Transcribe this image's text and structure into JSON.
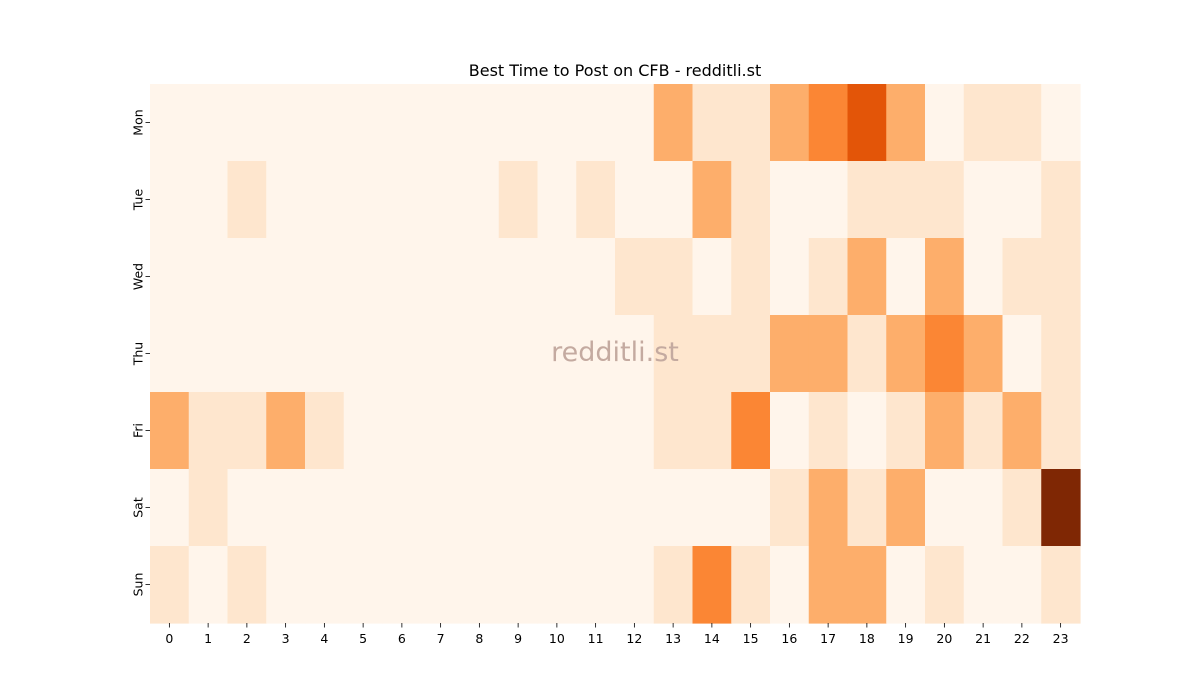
{
  "chart_data": {
    "type": "heatmap",
    "title": "Best Time to Post on CFB - redditli.st",
    "watermark": "redditli.st",
    "xlabel": "",
    "ylabel": "",
    "x_categories": [
      "0",
      "1",
      "2",
      "3",
      "4",
      "5",
      "6",
      "7",
      "8",
      "9",
      "10",
      "11",
      "12",
      "13",
      "14",
      "15",
      "16",
      "17",
      "18",
      "19",
      "20",
      "21",
      "22",
      "23"
    ],
    "y_categories": [
      "Mon",
      "Tue",
      "Wed",
      "Thu",
      "Fri",
      "Sat",
      "Sun"
    ],
    "colormap": "Oranges",
    "colorbar": false,
    "value_range": [
      0,
      4
    ],
    "values": [
      [
        0,
        0,
        0,
        0,
        0,
        0,
        0,
        0,
        0,
        0,
        0,
        0,
        0,
        1.5,
        0.5,
        0.5,
        1.5,
        2.1,
        2.8,
        1.5,
        0,
        0.5,
        0.5,
        0
      ],
      [
        0,
        0,
        0.5,
        0,
        0,
        0,
        0,
        0,
        0,
        0.5,
        0,
        0.5,
        0,
        0,
        1.5,
        0.5,
        0,
        0,
        0.5,
        0.5,
        0.5,
        0,
        0,
        0.5
      ],
      [
        0,
        0,
        0,
        0,
        0,
        0,
        0,
        0,
        0,
        0,
        0,
        0,
        0.5,
        0.5,
        0,
        0.5,
        0,
        0.5,
        1.5,
        0,
        1.5,
        0,
        0.5,
        0.5
      ],
      [
        0,
        0,
        0,
        0,
        0,
        0,
        0,
        0,
        0,
        0,
        0,
        0,
        0,
        0.5,
        0.5,
        0.5,
        1.5,
        1.5,
        0.5,
        1.5,
        2.1,
        1.5,
        0,
        0.5
      ],
      [
        1.5,
        0.5,
        0.5,
        1.5,
        0.5,
        0,
        0,
        0,
        0,
        0,
        0,
        0,
        0,
        0.5,
        0.5,
        2.1,
        0,
        0.5,
        0,
        0.5,
        1.5,
        0.5,
        1.5,
        0.5
      ],
      [
        0,
        0.5,
        0,
        0,
        0,
        0,
        0,
        0,
        0,
        0,
        0,
        0,
        0,
        0,
        0,
        0,
        0.5,
        1.5,
        0.5,
        1.5,
        0,
        0,
        0.5,
        4
      ],
      [
        0.5,
        0,
        0.5,
        0,
        0,
        0,
        0,
        0,
        0,
        0,
        0,
        0,
        0,
        0.5,
        2.1,
        0.5,
        0,
        1.5,
        1.5,
        0,
        0.5,
        0,
        0,
        0.5
      ]
    ]
  }
}
